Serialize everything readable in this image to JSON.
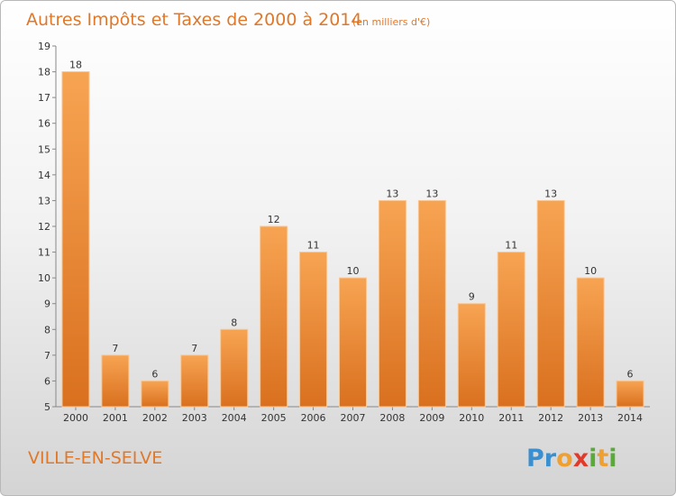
{
  "chart_data": {
    "type": "bar",
    "title": "Autres Impôts et Taxes de 2000 à 2014",
    "subtitle": "(en milliers d'€)",
    "categories": [
      "2000",
      "2001",
      "2002",
      "2003",
      "2004",
      "2005",
      "2006",
      "2007",
      "2008",
      "2009",
      "2010",
      "2011",
      "2012",
      "2013",
      "2014"
    ],
    "values": [
      18,
      7,
      6,
      7,
      8,
      12,
      11,
      10,
      13,
      13,
      9,
      11,
      13,
      10,
      6
    ],
    "yticks": [
      "5",
      "6",
      "7",
      "8",
      "9",
      "10",
      "11",
      "12",
      "13",
      "14",
      "15",
      "16",
      "17",
      "18",
      "19"
    ],
    "ylim": [
      5,
      19
    ],
    "grid": false,
    "bar_color": "#f0913a",
    "xlabel": "",
    "ylabel": ""
  },
  "commune": "VILLE-EN-SELVE",
  "brand": {
    "letters": [
      "P",
      "r",
      "o",
      "x",
      "i",
      "t",
      "i"
    ],
    "colors": [
      "#3a8fd0",
      "#3a8fd0",
      "#f0a030",
      "#e23a2a",
      "#5aaa3a",
      "#f0a030",
      "#5aaa3a"
    ]
  }
}
